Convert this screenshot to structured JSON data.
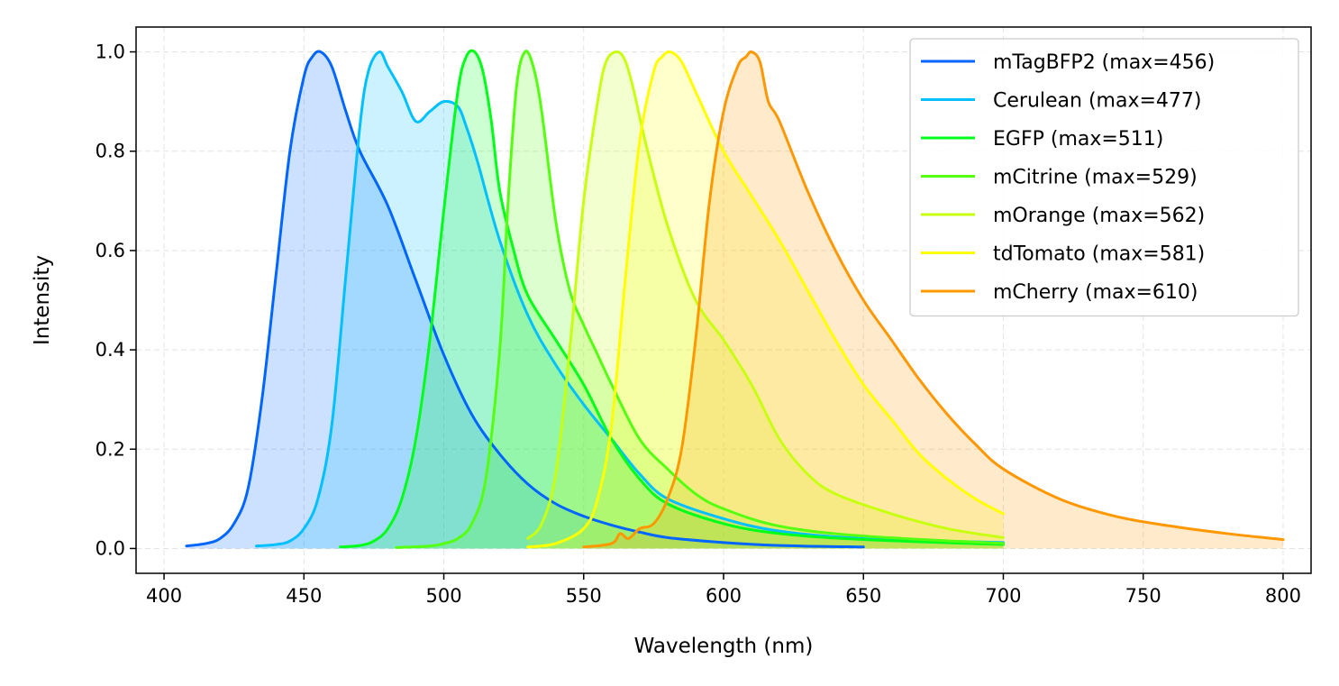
{
  "chart_data": {
    "type": "line",
    "xlabel": "Wavelength (nm)",
    "ylabel": "Intensity",
    "xlim": [
      390,
      810
    ],
    "ylim": [
      -0.05,
      1.05
    ],
    "xticks": [
      400,
      450,
      500,
      550,
      600,
      650,
      700,
      750,
      800
    ],
    "yticks": [
      0.0,
      0.2,
      0.4,
      0.6,
      0.8,
      1.0
    ],
    "xtick_labels": [
      "400",
      "450",
      "500",
      "550",
      "600",
      "650",
      "700",
      "750",
      "800"
    ],
    "ytick_labels": [
      "0.0",
      "0.2",
      "0.4",
      "0.6",
      "0.8",
      "1.0"
    ],
    "grid": true,
    "legend_position": "top-right",
    "filled": true,
    "series": [
      {
        "name": "mTagBFP2 (max=456)",
        "color": "#0066ff",
        "x": [
          408,
          415,
          420,
          425,
          430,
          435,
          440,
          445,
          450,
          453,
          456,
          460,
          465,
          470,
          480,
          490,
          500,
          510,
          520,
          530,
          540,
          550,
          560,
          570,
          580,
          600,
          620,
          650
        ],
        "y": [
          0.005,
          0.01,
          0.02,
          0.05,
          0.12,
          0.3,
          0.55,
          0.8,
          0.95,
          0.99,
          1.0,
          0.97,
          0.88,
          0.8,
          0.69,
          0.54,
          0.39,
          0.27,
          0.19,
          0.13,
          0.09,
          0.065,
          0.047,
          0.033,
          0.022,
          0.012,
          0.006,
          0.003
        ]
      },
      {
        "name": "Cerulean (max=477)",
        "color": "#00c0ff",
        "x": [
          433,
          440,
          445,
          450,
          455,
          460,
          465,
          470,
          473,
          477,
          480,
          485,
          490,
          495,
          500,
          505,
          508,
          512,
          520,
          530,
          540,
          550,
          560,
          570,
          580,
          600,
          620,
          650,
          700
        ],
        "y": [
          0.005,
          0.008,
          0.015,
          0.04,
          0.1,
          0.25,
          0.55,
          0.85,
          0.96,
          1.0,
          0.97,
          0.92,
          0.86,
          0.88,
          0.9,
          0.89,
          0.85,
          0.78,
          0.62,
          0.47,
          0.37,
          0.29,
          0.22,
          0.15,
          0.1,
          0.06,
          0.035,
          0.02,
          0.012
        ]
      },
      {
        "name": "EGFP (max=511)",
        "color": "#00ff18",
        "x": [
          463,
          470,
          475,
          480,
          485,
          490,
          495,
          500,
          505,
          508,
          511,
          514,
          517,
          520,
          525,
          530,
          540,
          550,
          560,
          570,
          580,
          600,
          620,
          650,
          700
        ],
        "y": [
          0.003,
          0.006,
          0.015,
          0.04,
          0.1,
          0.22,
          0.42,
          0.68,
          0.92,
          0.99,
          1.0,
          0.96,
          0.86,
          0.72,
          0.6,
          0.51,
          0.42,
          0.33,
          0.22,
          0.14,
          0.09,
          0.05,
          0.03,
          0.018,
          0.008
        ]
      },
      {
        "name": "mCitrine (max=529)",
        "color": "#55ff10",
        "x": [
          483,
          495,
          500,
          505,
          510,
          515,
          520,
          523,
          526,
          529,
          532,
          535,
          540,
          545,
          550,
          555,
          560,
          570,
          580,
          590,
          600,
          620,
          650,
          700
        ],
        "y": [
          0.002,
          0.005,
          0.01,
          0.02,
          0.05,
          0.14,
          0.4,
          0.7,
          0.93,
          1.0,
          0.97,
          0.88,
          0.66,
          0.52,
          0.45,
          0.39,
          0.33,
          0.22,
          0.16,
          0.11,
          0.08,
          0.045,
          0.025,
          0.01
        ]
      },
      {
        "name": "mOrange (max=562)",
        "color": "#c8ff10",
        "x": [
          530,
          535,
          540,
          545,
          550,
          555,
          558,
          562,
          565,
          568,
          572,
          580,
          590,
          600,
          610,
          620,
          630,
          640,
          660,
          680,
          700
        ],
        "y": [
          0.02,
          0.05,
          0.15,
          0.4,
          0.7,
          0.9,
          0.98,
          1.0,
          0.98,
          0.92,
          0.82,
          0.65,
          0.5,
          0.42,
          0.33,
          0.22,
          0.15,
          0.11,
          0.07,
          0.04,
          0.022
        ]
      },
      {
        "name": "tdTomato (max=581)",
        "color": "#ffff00",
        "x": [
          530,
          540,
          550,
          555,
          560,
          565,
          570,
          575,
          578,
          581,
          585,
          590,
          600,
          610,
          620,
          630,
          640,
          650,
          660,
          670,
          680,
          690,
          700
        ],
        "y": [
          0.003,
          0.01,
          0.04,
          0.1,
          0.25,
          0.55,
          0.82,
          0.96,
          0.99,
          1.0,
          0.98,
          0.92,
          0.8,
          0.71,
          0.62,
          0.52,
          0.42,
          0.33,
          0.26,
          0.19,
          0.14,
          0.1,
          0.07
        ]
      },
      {
        "name": "mCherry (max=610)",
        "color": "#ff9800",
        "x": [
          550,
          560,
          563,
          566,
          570,
          575,
          580,
          585,
          590,
          595,
          600,
          605,
          608,
          610,
          613,
          616,
          620,
          630,
          640,
          650,
          660,
          670,
          680,
          690,
          700,
          720,
          740,
          760,
          780,
          800
        ],
        "y": [
          0.003,
          0.01,
          0.03,
          0.02,
          0.04,
          0.05,
          0.1,
          0.2,
          0.42,
          0.7,
          0.88,
          0.97,
          0.99,
          1.0,
          0.98,
          0.9,
          0.86,
          0.72,
          0.6,
          0.5,
          0.42,
          0.34,
          0.27,
          0.21,
          0.16,
          0.1,
          0.065,
          0.045,
          0.03,
          0.018
        ]
      }
    ]
  }
}
